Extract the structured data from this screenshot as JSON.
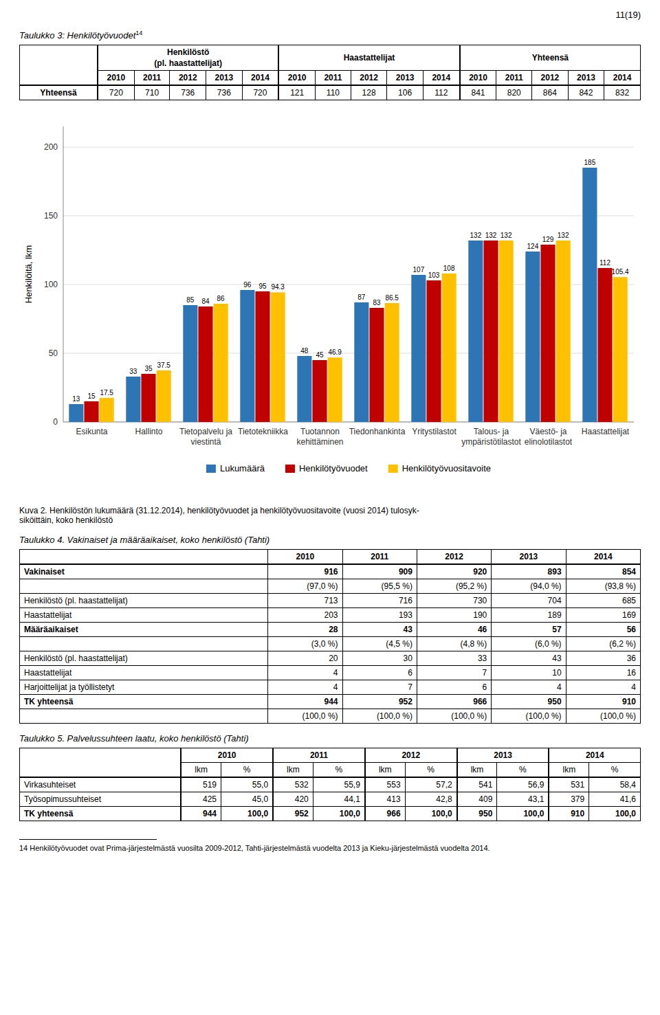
{
  "page_number": "11(19)",
  "tables": [
    {
      "title": "Taulukko 3: Henkilötyövuodet",
      "title_note": "14",
      "group_headers": [
        "Henkilöstö\n(pl. haastattelijat)",
        "Haastattelijat",
        "Yhteensä"
      ],
      "header": [
        "2010",
        "2011",
        "2012",
        "2013",
        "2014",
        "2010",
        "2011",
        "2012",
        "2013",
        "2014",
        "2010",
        "2011",
        "2012",
        "2013",
        "2014"
      ],
      "rows": [
        {
          "label": "Yhteensä",
          "label_bold": true,
          "cells": [
            "720",
            "710",
            "736",
            "736",
            "720",
            "121",
            "110",
            "128",
            "106",
            "112",
            "841",
            "820",
            "864",
            "842",
            "832"
          ]
        }
      ]
    },
    {
      "title": "Taulukko 4. Vakinaiset ja määräaikaiset, koko henkilöstö (Tahti)",
      "header": [
        "2010",
        "2011",
        "2012",
        "2013",
        "2014"
      ],
      "rows": [
        {
          "label": "Vakinaiset",
          "cells": [
            "916",
            "909",
            "920",
            "893",
            "854"
          ],
          "bold": true
        },
        {
          "cells": [
            "(97,0 %)",
            "(95,5 %)",
            "(95,2 %)",
            "(94,0 %)",
            "(93,8 %)"
          ]
        },
        {
          "label": "Henkilöstö (pl. haastattelijat)",
          "cells": [
            "713",
            "716",
            "730",
            "704",
            "685"
          ]
        },
        {
          "label": "Haastattelijat",
          "cells": [
            "203",
            "193",
            "190",
            "189",
            "169"
          ]
        },
        {
          "label": "Määräaikaiset",
          "cells": [
            "28",
            "43",
            "46",
            "57",
            "56"
          ],
          "bold": true
        },
        {
          "cells": [
            "(3,0 %)",
            "(4,5 %)",
            "(4,8 %)",
            "(6,0 %)",
            "(6,2 %)"
          ]
        },
        {
          "label": "Henkilöstö (pl. haastattelijat)",
          "cells": [
            "20",
            "30",
            "33",
            "43",
            "36"
          ]
        },
        {
          "label": "Haastattelijat",
          "cells": [
            "4",
            "6",
            "7",
            "10",
            "16"
          ]
        },
        {
          "label": "Harjoittelijat ja työllistetyt",
          "cells": [
            "4",
            "7",
            "6",
            "4",
            "4"
          ]
        },
        {
          "label": "TK yhteensä",
          "cells": [
            "944",
            "952",
            "966",
            "950",
            "910"
          ],
          "bold": true
        },
        {
          "cells": [
            "(100,0 %)",
            "(100,0 %)",
            "(100,0 %)",
            "(100,0 %)",
            "(100,0 %)"
          ]
        }
      ]
    },
    {
      "title": "Taulukko 5. Palvelussuhteen laatu, koko henkilöstö (Tahti)",
      "header": [
        "2010",
        "2011",
        "2012",
        "2013",
        "2014"
      ],
      "subheader": [
        "lkm",
        "%"
      ],
      "rows": [
        {
          "label": "Virkasuhteiset",
          "cells": [
            "519",
            "55,0",
            "532",
            "55,9",
            "553",
            "57,2",
            "541",
            "56,9",
            "531",
            "58,4"
          ]
        },
        {
          "label": "Työsopimussuhteiset",
          "cells": [
            "425",
            "45,0",
            "420",
            "44,1",
            "413",
            "42,8",
            "409",
            "43,1",
            "379",
            "41,6"
          ]
        },
        {
          "label": "TK yhteensä",
          "cells": [
            "944",
            "100,0",
            "952",
            "100,0",
            "966",
            "100,0",
            "950",
            "100,0",
            "910",
            "100,0"
          ],
          "bold": true
        }
      ]
    }
  ],
  "chart_data": {
    "type": "bar",
    "caption": "Kuva 2. Henkilöstön lukumäärä (31.12.2014), henkilötyövuodet ja henkilötyövuositavoite (vuosi 2014) tulosyk-\nsiköittäin, koko henkilöstö",
    "y_label": "Henkilöitä, lkm",
    "categories": [
      "Esikunta",
      "Hallinto",
      "Tietopalvelu ja\nviestintä",
      "Tietotekniikka",
      "Tuotannon\nkehittäminen",
      "Tiedonhankinta",
      "Yritystilastot",
      "Talous- ja\nympäristötilastot",
      "Väestö- ja\nelinolotilastot",
      "Haastattelijat"
    ],
    "series": [
      {
        "name": "Lukumäärä",
        "color": "#2E75B6",
        "values": [
          13,
          33,
          85,
          96,
          48,
          87,
          107,
          132,
          124,
          185
        ]
      },
      {
        "name": "Henkilötyövuodet",
        "color": "#C00000",
        "values": [
          15,
          35,
          84,
          95,
          45,
          83,
          103,
          132,
          129,
          112
        ]
      },
      {
        "name": "Henkilötyövuositavoite",
        "color": "#FFC000",
        "values": [
          17.5,
          37.5,
          86,
          94.3,
          46.9,
          86.5,
          108,
          132,
          132,
          105.4
        ]
      }
    ],
    "ylim": [
      0,
      215
    ],
    "yticks": [
      0,
      50,
      100,
      150,
      200
    ],
    "grid": true,
    "data_labels": true,
    "legend": "bottom"
  },
  "footnote": "14 Henkilötyövuodet ovat Prima-järjestelmästä vuosilta 2009-2012, Tahti-järjestelmästä vuodelta 2013 ja Kieku-järjestelmästä vuodelta 2014."
}
